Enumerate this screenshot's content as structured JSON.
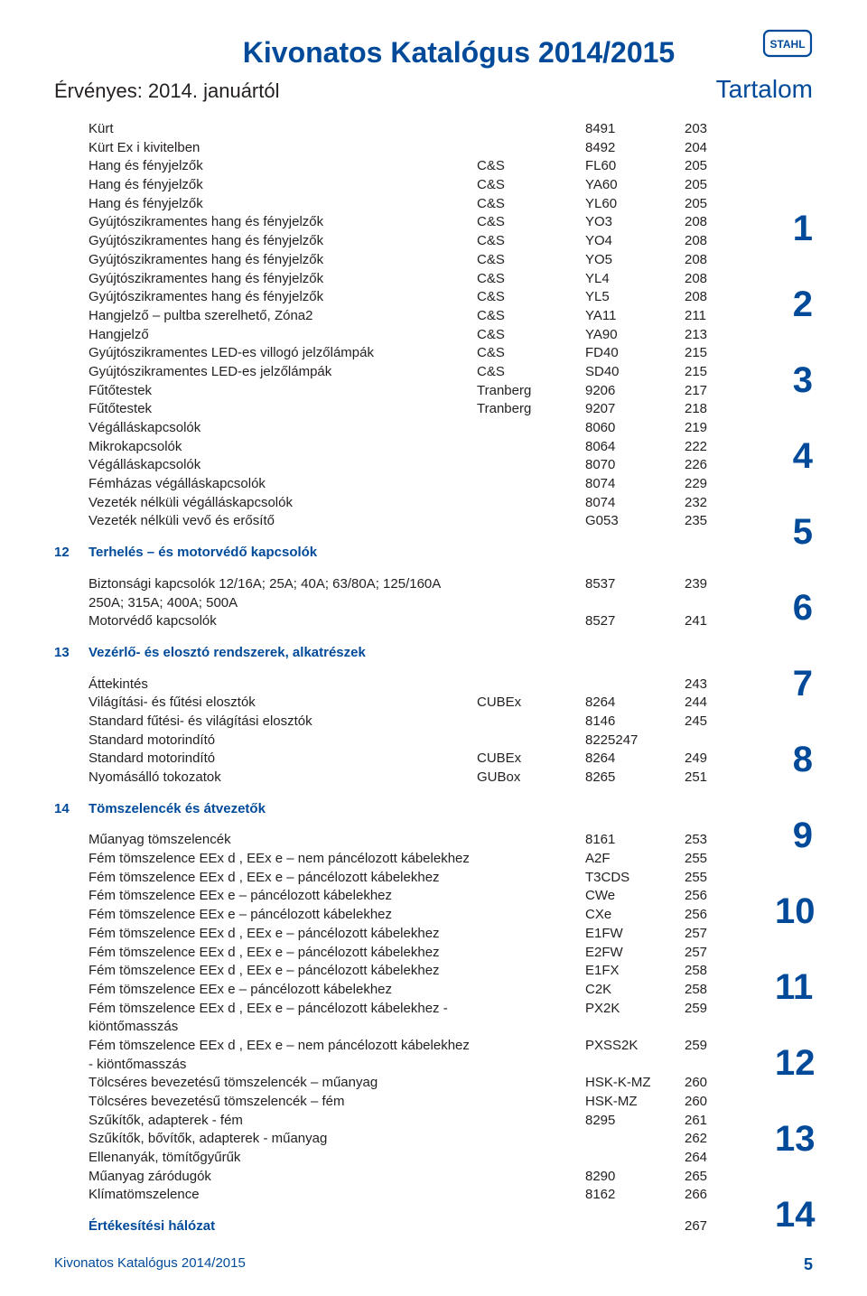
{
  "header": {
    "main_title": "Kivonatos Katalógus 2014/2015",
    "valid": "Érvényes: 2014. januártól",
    "subtitle": "Tartalom",
    "logo_text": "STAHL",
    "logo_border_color": "#004a99",
    "logo_text_color": "#004a99"
  },
  "colors": {
    "brand": "#004a99",
    "text": "#231f20",
    "bg": "#ffffff"
  },
  "side_numbers": [
    "1",
    "2",
    "3",
    "4",
    "5",
    "6",
    "7",
    "8",
    "9",
    "10",
    "11",
    "12",
    "13",
    "14"
  ],
  "rows": [
    {
      "c0": "",
      "c1": "Kürt",
      "c2": "",
      "c3": "8491",
      "c4": "203"
    },
    {
      "c0": "",
      "c1": "Kürt Ex i kivitelben",
      "c2": "",
      "c3": "8492",
      "c4": "204"
    },
    {
      "c0": "",
      "c1": "Hang és fényjelzők",
      "c2": "C&S",
      "c3": "FL60",
      "c4": "205"
    },
    {
      "c0": "",
      "c1": "Hang és fényjelzők",
      "c2": "C&S",
      "c3": "YA60",
      "c4": "205"
    },
    {
      "c0": "",
      "c1": "Hang és fényjelzők",
      "c2": "C&S",
      "c3": "YL60",
      "c4": "205"
    },
    {
      "c0": "",
      "c1": "Gyújtószikramentes hang és fényjelzők",
      "c2": "C&S",
      "c3": "YO3",
      "c4": "208"
    },
    {
      "c0": "",
      "c1": "Gyújtószikramentes hang és fényjelzők",
      "c2": "C&S",
      "c3": "YO4",
      "c4": "208"
    },
    {
      "c0": "",
      "c1": "Gyújtószikramentes hang és fényjelzők",
      "c2": "C&S",
      "c3": "YO5",
      "c4": "208"
    },
    {
      "c0": "",
      "c1": "Gyújtószikramentes hang és fényjelzők",
      "c2": "C&S",
      "c3": "YL4",
      "c4": "208"
    },
    {
      "c0": "",
      "c1": "Gyújtószikramentes hang és fényjelzők",
      "c2": "C&S",
      "c3": "YL5",
      "c4": "208"
    },
    {
      "c0": "",
      "c1": "Hangjelző – pultba szerelhető, Zóna2",
      "c2": "C&S",
      "c3": "YA11",
      "c4": "211"
    },
    {
      "c0": "",
      "c1": "Hangjelző",
      "c2": "C&S",
      "c3": "YA90",
      "c4": "213"
    },
    {
      "c0": "",
      "c1": "Gyújtószikramentes LED-es villogó jelzőlámpák",
      "c2": "C&S",
      "c3": "FD40",
      "c4": "215"
    },
    {
      "c0": "",
      "c1": "Gyújtószikramentes LED-es jelzőlámpák",
      "c2": "C&S",
      "c3": "SD40",
      "c4": "215"
    },
    {
      "c0": "",
      "c1": "Fűtőtestek",
      "c2": "Tranberg",
      "c3": "9206",
      "c4": "217"
    },
    {
      "c0": "",
      "c1": "Fűtőtestek",
      "c2": "Tranberg",
      "c3": "9207",
      "c4": "218"
    },
    {
      "c0": "",
      "c1": "Végálláskapcsolók",
      "c2": "",
      "c3": "8060",
      "c4": "219"
    },
    {
      "c0": "",
      "c1": "Mikrokapcsolók",
      "c2": "",
      "c3": "8064",
      "c4": "222"
    },
    {
      "c0": "",
      "c1": "Végálláskapcsolók",
      "c2": "",
      "c3": "8070",
      "c4": "226"
    },
    {
      "c0": "",
      "c1": "Fémházas végálláskapcsolók",
      "c2": "",
      "c3": "8074",
      "c4": "229"
    },
    {
      "c0": "",
      "c1": "Vezeték nélküli végálláskapcsolók",
      "c2": "",
      "c3": "8074",
      "c4": "232"
    },
    {
      "c0": "",
      "c1": "Vezeték nélküli vevő és erősítő",
      "c2": "",
      "c3": "G053",
      "c4": "235"
    },
    {
      "spacer": true
    },
    {
      "c0": "12",
      "c1": "Terhelés – és motorvédő kapcsolók",
      "section": true
    },
    {
      "spacer": true
    },
    {
      "c0": "",
      "c1": "Biztonsági kapcsolók 12/16A; 25A; 40A; 63/80A; 125/160A 250A; 315A; 400A; 500A",
      "c2": "",
      "c3": "8537",
      "c4": "239"
    },
    {
      "c0": "",
      "c1": "Motorvédő kapcsolók",
      "c2": "",
      "c3": "8527",
      "c4": "241"
    },
    {
      "spacer": true
    },
    {
      "c0": "13",
      "c1": "Vezérlő- és elosztó rendszerek, alkatrészek",
      "section": true
    },
    {
      "spacer": true
    },
    {
      "c0": "",
      "c1": "Áttekintés",
      "c2": "",
      "c3": "",
      "c4": "243"
    },
    {
      "c0": "",
      "c1": "Világítási- és fűtési elosztók",
      "c2": "CUBEx",
      "c3": "8264",
      "c4": "244"
    },
    {
      "c0": "",
      "c1": "Standard fűtési- és világítási elosztók",
      "c2": "",
      "c3": "8146",
      "c4": "245"
    },
    {
      "c0": "",
      "c1": "Standard motorindító",
      "c2": "",
      "c3": "8225247",
      "c4": ""
    },
    {
      "c0": "",
      "c1": "Standard motorindító",
      "c2": "CUBEx",
      "c3": "8264",
      "c4": "249"
    },
    {
      "c0": "",
      "c1": "Nyomásálló tokozatok",
      "c2": "GUBox",
      "c3": "8265",
      "c4": "251"
    },
    {
      "spacer": true
    },
    {
      "c0": "14",
      "c1": "Tömszelencék és átvezetők",
      "section": true
    },
    {
      "spacer": true
    },
    {
      "c0": "",
      "c1": "Műanyag tömszelencék",
      "c2": "",
      "c3": "8161",
      "c4": "253"
    },
    {
      "c0": "",
      "c1": "Fém tömszelence EEx d , EEx e – nem páncélozott kábelekhez",
      "c2": "",
      "c3": "A2F",
      "c4": "255"
    },
    {
      "c0": "",
      "c1": "Fém tömszelence EEx d , EEx e – páncélozott kábelekhez",
      "c2": "",
      "c3": "T3CDS",
      "c4": "255"
    },
    {
      "c0": "",
      "c1": "Fém tömszelence EEx e – páncélozott kábelekhez",
      "c2": "",
      "c3": "CWe",
      "c4": "256"
    },
    {
      "c0": "",
      "c1": "Fém tömszelence EEx e – páncélozott kábelekhez",
      "c2": "",
      "c3": "CXe",
      "c4": "256"
    },
    {
      "c0": "",
      "c1": "Fém tömszelence EEx d , EEx e – páncélozott kábelekhez",
      "c2": "",
      "c3": "E1FW",
      "c4": "257"
    },
    {
      "c0": "",
      "c1": "Fém tömszelence EEx d , EEx e – páncélozott kábelekhez",
      "c2": "",
      "c3": "E2FW",
      "c4": "257"
    },
    {
      "c0": "",
      "c1": "Fém tömszelence EEx d , EEx e – páncélozott kábelekhez",
      "c2": "",
      "c3": "E1FX",
      "c4": "258"
    },
    {
      "c0": "",
      "c1": "Fém tömszelence EEx e – páncélozott kábelekhez",
      "c2": "",
      "c3": "C2K",
      "c4": "258"
    },
    {
      "c0": "",
      "c1": "Fém tömszelence EEx d , EEx e – páncélozott kábelekhez - kiöntőmasszás",
      "c2": "",
      "c3": "PX2K",
      "c4": "259"
    },
    {
      "c0": "",
      "c1": "Fém tömszelence EEx d , EEx e – nem páncélozott kábelekhez - kiöntőmasszás",
      "c2": "",
      "c3": "PXSS2K",
      "c4": "259"
    },
    {
      "c0": "",
      "c1": "Tölcséres bevezetésű tömszelencék – műanyag",
      "c2": "",
      "c3": "HSK-K-MZ",
      "c4": "260"
    },
    {
      "c0": "",
      "c1": "Tölcséres bevezetésű tömszelencék – fém",
      "c2": "",
      "c3": "HSK-MZ",
      "c4": "260"
    },
    {
      "c0": "",
      "c1": "Szűkítők, adapterek - fém",
      "c2": "",
      "c3": "8295",
      "c4": "261"
    },
    {
      "c0": "",
      "c1": "Szűkítők, bővítők, adapterek - műanyag",
      "c2": "",
      "c3": "",
      "c4": "262"
    },
    {
      "c0": "",
      "c1": "Ellenanyák, tömítőgyűrűk",
      "c2": "",
      "c3": "",
      "c4": "264"
    },
    {
      "c0": "",
      "c1": "Műanyag záródugók",
      "c2": "",
      "c3": "8290",
      "c4": "265"
    },
    {
      "c0": "",
      "c1": "Klímatömszelence",
      "c2": "",
      "c3": "8162",
      "c4": "266"
    },
    {
      "spacer": true
    },
    {
      "c0": "",
      "c1": "Értékesítési hálózat",
      "c2": "",
      "c3": "",
      "c4": "267",
      "bold": true
    }
  ],
  "footer": {
    "title": "Kivonatos Katalógus 2014/2015",
    "page": "5"
  }
}
